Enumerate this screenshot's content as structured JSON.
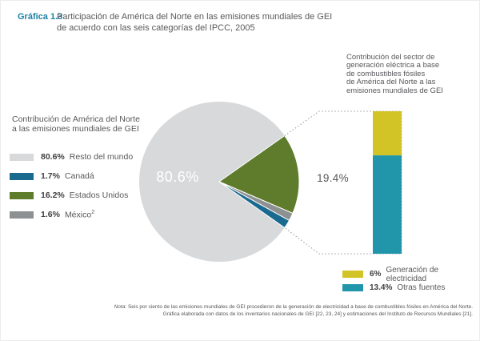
{
  "header": {
    "label": "Gráfica 1.3",
    "title": "Participación de América del Norte en las emisiones mundiales de GEI\nde acuerdo con las seis categorías del IPCC, 2005"
  },
  "left_annotation": "Contribución de América del Norte\na las emisiones mundiales de GEI",
  "right_annotation": "Contribución del sector de\ngeneración eléctrica a base\nde combustibles fósiles\nde América del Norte a las\nemisiones mundiales de GEI",
  "pie_legend": {
    "items": [
      {
        "pct": "80.6%",
        "label": "Resto del mundo",
        "color": "#d7d9db"
      },
      {
        "pct": "1.7%",
        "label": "Canadá",
        "color": "#1a6a90"
      },
      {
        "pct": "16.2%",
        "label": "Estados Unidos",
        "color": "#5e7c2b"
      },
      {
        "pct": "1.6%",
        "label": "México",
        "label_superscript": "2",
        "color": "#8e9192"
      }
    ]
  },
  "bar_legend": {
    "items": [
      {
        "pct": "6%",
        "label": "Generación de electricidad",
        "color": "#d2c326"
      },
      {
        "pct": "13.4%",
        "label": "Otras fuentes",
        "color": "#2196ab"
      }
    ]
  },
  "pie_center_label": "80.6%",
  "bar_total_label": "19.4%",
  "chart_data": [
    {
      "type": "pie",
      "title": "Contribución de América del Norte a las emisiones mundiales de GEI",
      "slices": [
        {
          "label": "Resto del mundo",
          "value": 80.6,
          "color": "#d7d9db"
        },
        {
          "label": "Estados Unidos",
          "value": 16.2,
          "color": "#5e7c2b"
        },
        {
          "label": "México",
          "value": 1.6,
          "color": "#8e9192"
        },
        {
          "label": "Canadá",
          "value": 1.7,
          "color": "#1a6a90"
        }
      ],
      "center_label": "80.6%",
      "legend_position": "left"
    },
    {
      "type": "bar",
      "title": "Contribución del sector de generación eléctrica a base de combustibles fósiles de América del Norte a las emisiones mundiales de GEI",
      "total_label": "19.4%",
      "segments": [
        {
          "label": "Generación de electricidad",
          "value": 6,
          "color": "#d2c326"
        },
        {
          "label": "Otras fuentes",
          "value": 13.4,
          "color": "#2196ab"
        }
      ],
      "legend_position": "bottom-right"
    }
  ],
  "footnote": {
    "label": "Nota:",
    "line1": " Seis por ciento de las emisiones mundiales de GEI procedieron de la generación de electricidad a base de combustibles fósiles en América del Norte.",
    "line2": "Gráfica elaborada con datos de los inventarios nacionales de GEI [22, 23, 24] y estimaciones del Instituto de Recursos Mundiales [21]."
  }
}
